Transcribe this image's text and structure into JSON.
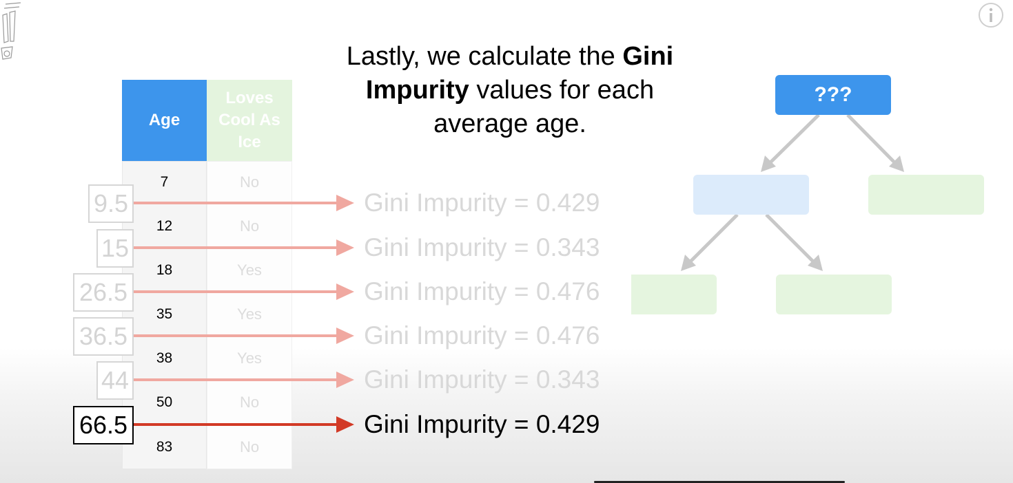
{
  "title": {
    "part1": "Lastly, we calculate the ",
    "bold1": "Gini",
    "bold2": "Impurity",
    "part2": " values for each",
    "part3": "average age."
  },
  "table": {
    "headers": {
      "age": "Age",
      "loves": "Loves Cool As Ice"
    },
    "rows": [
      {
        "age": "7",
        "loves": "No"
      },
      {
        "age": "12",
        "loves": "No"
      },
      {
        "age": "18",
        "loves": "Yes"
      },
      {
        "age": "35",
        "loves": "Yes"
      },
      {
        "age": "38",
        "loves": "Yes"
      },
      {
        "age": "50",
        "loves": "No"
      },
      {
        "age": "83",
        "loves": "No"
      }
    ]
  },
  "midpoints": [
    {
      "value": "9.5",
      "gini": "Gini Impurity = 0.429",
      "active": false
    },
    {
      "value": "15",
      "gini": "Gini Impurity = 0.343",
      "active": false
    },
    {
      "value": "26.5",
      "gini": "Gini Impurity = 0.476",
      "active": false
    },
    {
      "value": "36.5",
      "gini": "Gini Impurity = 0.476",
      "active": false
    },
    {
      "value": "44",
      "gini": "Gini Impurity = 0.343",
      "active": false
    },
    {
      "value": "66.5",
      "gini": "Gini Impurity = 0.429",
      "active": true
    }
  ],
  "tree": {
    "root_label": "???"
  },
  "colors": {
    "blue": "#3d95ec",
    "arrow_faded": "#f0a8a0",
    "arrow_active": "#d23a26",
    "tree_arrow": "#c8c8c8"
  },
  "icons": {
    "info": "info-icon",
    "logo": "statquest-logo"
  }
}
